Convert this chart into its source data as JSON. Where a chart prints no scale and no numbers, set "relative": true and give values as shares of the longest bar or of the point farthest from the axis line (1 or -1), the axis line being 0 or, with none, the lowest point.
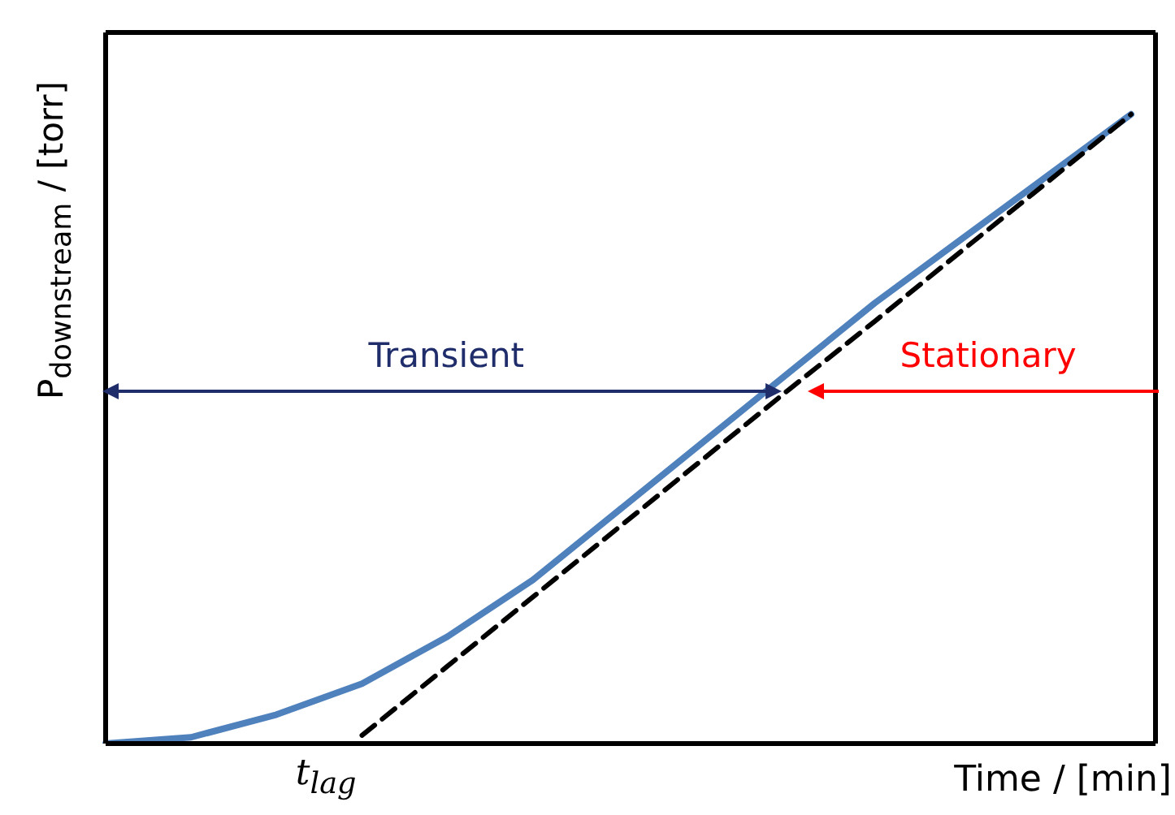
{
  "chart_data": {
    "type": "line",
    "relative": true,
    "xlabel": "Time / [min]",
    "ylabel": "P$_{downstream}$ / [torr]",
    "categories": [
      null,
      null,
      null,
      null,
      null,
      null,
      null,
      null,
      null,
      null,
      null,
      null,
      null
    ],
    "marker": "none",
    "series": [
      {
        "color": "#4f81bd",
        "line_style": "solid",
        "values": [
          0,
          0.01,
          0.046,
          0.095,
          0.17,
          0.26,
          0.37,
          0.48,
          0.59,
          0.7,
          0.8,
          0.9,
          1.0
        ]
      },
      {
        "color": "#000000",
        "line_style": "dashed",
        "values": [
          null,
          null,
          null,
          0.013,
          0.123,
          0.233,
          0.343,
          0.453,
          0.563,
          0.671,
          0.781,
          0.89,
          1.0
        ]
      }
    ],
    "annotations": [
      "Transient",
      "Stationary",
      "t$_{lag}$"
    ]
  }
}
